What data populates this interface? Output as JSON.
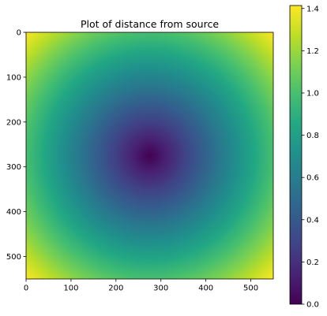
{
  "chart_data": {
    "type": "heatmap",
    "title": "Plot of distance from source",
    "xlabel": "",
    "ylabel": "",
    "image_size": 550,
    "source": [
      275,
      275
    ],
    "value_range": [
      0,
      1.414
    ],
    "colormap": "viridis",
    "x_ticks": [
      0,
      100,
      200,
      300,
      400,
      500
    ],
    "y_ticks": [
      0,
      100,
      200,
      300,
      400,
      500
    ],
    "colorbar_ticks": [
      0.0,
      0.2,
      0.4,
      0.6,
      0.8,
      1.0,
      1.2,
      1.4
    ],
    "colorbar_tick_labels": [
      "0.0",
      "0.2",
      "0.4",
      "0.6",
      "0.8",
      "1.0",
      "1.2",
      "1.4"
    ],
    "grid": false
  }
}
